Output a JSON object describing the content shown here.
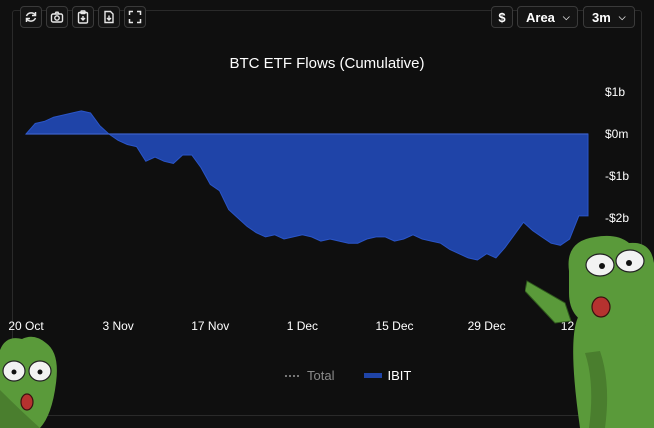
{
  "toolbar": {
    "icons": [
      "refresh-icon",
      "camera-icon",
      "clipboard-icon",
      "download-icon",
      "fullscreen-icon"
    ],
    "currency_label": "$",
    "chart_type_label": "Area",
    "range_label": "3m"
  },
  "legend": {
    "total_label": "Total",
    "ibit_label": "IBIT"
  },
  "colors": {
    "area": "#1f44a8",
    "background": "#101010",
    "total_series": "#777777"
  },
  "chart_data": {
    "type": "area",
    "title": "BTC ETF Flows (Cumulative)",
    "xlabel": "",
    "ylabel": "",
    "ylim": [
      -3.1,
      1.0
    ],
    "y_ticks": [
      {
        "value": 1,
        "label": "$1b"
      },
      {
        "value": 0,
        "label": "$0m"
      },
      {
        "value": -1,
        "label": "-$1b"
      },
      {
        "value": -2,
        "label": "-$2b"
      }
    ],
    "x_ticks": [
      {
        "index": 0,
        "label": "20 Oct"
      },
      {
        "index": 10,
        "label": "3 Nov"
      },
      {
        "index": 20,
        "label": "17 Nov"
      },
      {
        "index": 30,
        "label": "1 Dec"
      },
      {
        "index": 40,
        "label": "15 Dec"
      },
      {
        "index": 50,
        "label": "29 Dec"
      },
      {
        "index": 60,
        "label": "12 Jan"
      }
    ],
    "grid": false,
    "legend_position": "bottom",
    "series": [
      {
        "name": "IBIT",
        "values": [
          0.0,
          0.25,
          0.3,
          0.4,
          0.45,
          0.5,
          0.55,
          0.5,
          0.2,
          0.0,
          -0.15,
          -0.25,
          -0.3,
          -0.65,
          -0.55,
          -0.65,
          -0.7,
          -0.5,
          -0.5,
          -0.8,
          -1.2,
          -1.35,
          -1.8,
          -2.0,
          -2.2,
          -2.35,
          -2.45,
          -2.4,
          -2.5,
          -2.45,
          -2.4,
          -2.45,
          -2.55,
          -2.5,
          -2.55,
          -2.6,
          -2.6,
          -2.5,
          -2.45,
          -2.45,
          -2.55,
          -2.5,
          -2.4,
          -2.5,
          -2.55,
          -2.6,
          -2.75,
          -2.85,
          -2.95,
          -3.0,
          -2.85,
          -2.95,
          -2.7,
          -2.4,
          -2.1,
          -2.3,
          -2.45,
          -2.6,
          -2.65,
          -2.5,
          -1.95,
          -1.95
        ]
      },
      {
        "name": "Total",
        "values": []
      }
    ]
  }
}
